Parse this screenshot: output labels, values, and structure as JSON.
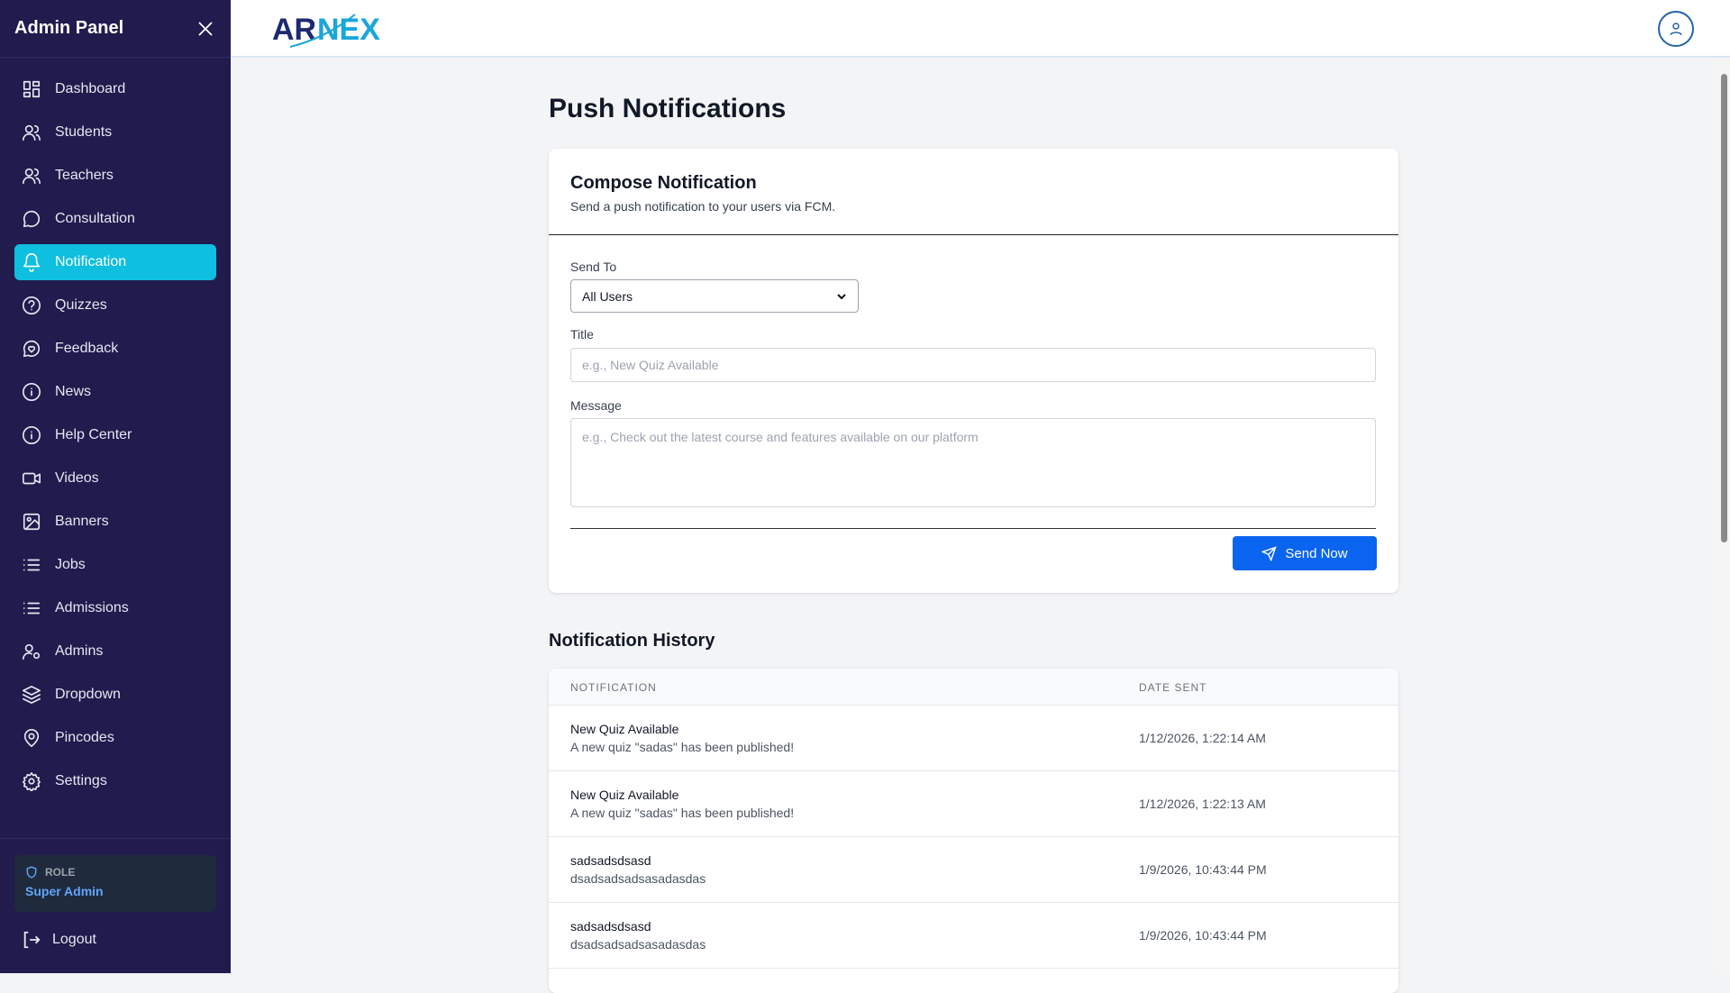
{
  "sidebar": {
    "title": "Admin Panel",
    "items": [
      {
        "label": "Dashboard",
        "icon": "dashboard-icon"
      },
      {
        "label": "Students",
        "icon": "users-icon"
      },
      {
        "label": "Teachers",
        "icon": "users-icon"
      },
      {
        "label": "Consultation",
        "icon": "chat-icon"
      },
      {
        "label": "Notification",
        "icon": "bell-icon",
        "active": true
      },
      {
        "label": "Quizzes",
        "icon": "help-circle-icon"
      },
      {
        "label": "Feedback",
        "icon": "heart-chat-icon"
      },
      {
        "label": "News",
        "icon": "info-icon"
      },
      {
        "label": "Help Center",
        "icon": "info-icon"
      },
      {
        "label": "Videos",
        "icon": "video-icon"
      },
      {
        "label": "Banners",
        "icon": "image-icon"
      },
      {
        "label": "Jobs",
        "icon": "list-icon"
      },
      {
        "label": "Admissions",
        "icon": "list-icon"
      },
      {
        "label": "Admins",
        "icon": "user-cog-icon"
      },
      {
        "label": "Dropdown",
        "icon": "layers-icon"
      },
      {
        "label": "Pincodes",
        "icon": "map-pin-icon"
      },
      {
        "label": "Settings",
        "icon": "gear-icon"
      }
    ],
    "role_label": "ROLE",
    "role_value": "Super Admin",
    "logout": "Logout",
    "active_color": "#0ebfdf"
  },
  "header": {
    "logo": "ARNEX"
  },
  "page": {
    "title": "Push Notifications"
  },
  "compose": {
    "title": "Compose Notification",
    "subtitle": "Send a push notification to your users via FCM.",
    "send_to_label": "Send To",
    "send_to_value": "All Users",
    "title_label": "Title",
    "title_placeholder": "e.g., New Quiz Available",
    "message_label": "Message",
    "message_placeholder": "e.g., Check out the latest course and features available on our platform",
    "send_button": "Send Now"
  },
  "history": {
    "title": "Notification History",
    "columns": [
      "NOTIFICATION",
      "DATE SENT"
    ],
    "rows": [
      {
        "title": "New Quiz Available",
        "message": "A new quiz \"sadas\" has been published!",
        "date": "1/12/2026, 1:22:14 AM"
      },
      {
        "title": "New Quiz Available",
        "message": "A new quiz \"sadas\" has been published!",
        "date": "1/12/2026, 1:22:13 AM"
      },
      {
        "title": "sadsadsdsasd",
        "message": "dsadsadsadsasadasdas",
        "date": "1/9/2026, 10:43:44 PM"
      },
      {
        "title": "sadsadsdsasd",
        "message": "dsadsadsadsasadasdas",
        "date": "1/9/2026, 10:43:44 PM"
      }
    ]
  }
}
